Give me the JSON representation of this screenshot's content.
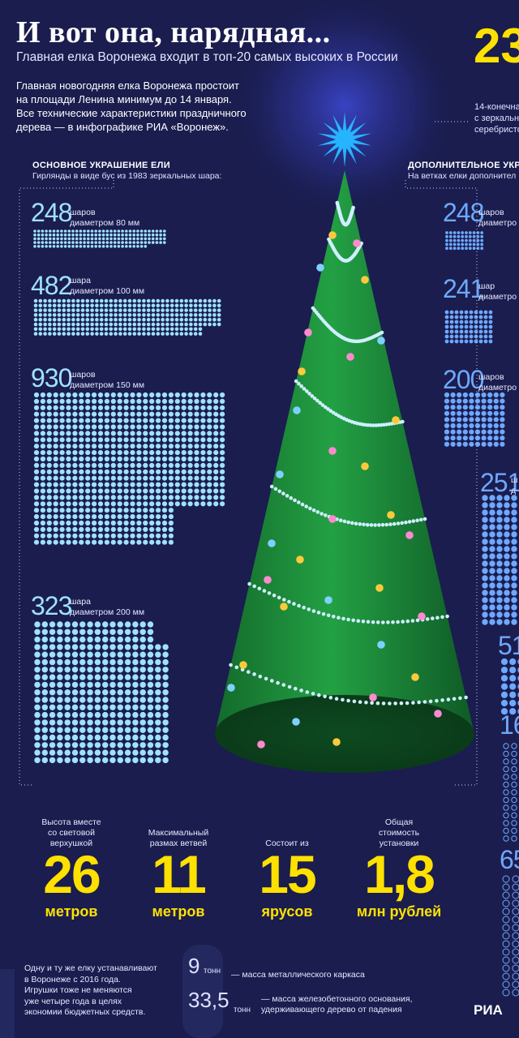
{
  "title": "И вот она, нарядная...",
  "subtitle": "Главная елка Воронежа входит в топ-20 самых высоких в России",
  "big_number": "23",
  "intro": [
    "Главная новогодняя елка Воронежа простоит",
    "на площади Ленина минимум до 14 января.",
    "Все технические характеристики праздничного",
    "дерева — в инфографике РИА «Воронеж»."
  ],
  "top_right": [
    "14-конечна",
    "с зеркальн",
    "серебристо"
  ],
  "left_section": {
    "heading": "ОСНОВНОЕ УКРАШЕНИЕ ЕЛИ",
    "sub": "Гирлянды в виде бус из 1983 зеркальных шара:",
    "items": [
      {
        "count": "248",
        "word": "шаров",
        "size": "диаметром 80 мм"
      },
      {
        "count": "482",
        "word": "шара",
        "size": "диаметром 100 мм"
      },
      {
        "count": "930",
        "word": "шаров",
        "size": "диаметром 150 мм"
      },
      {
        "count": "323",
        "word": "шара",
        "size": "диаметром 200 мм"
      }
    ]
  },
  "right_section": {
    "heading": "ДОПОЛНИТЕЛЬНОЕ УКРАШ",
    "sub": "На ветках елки дополнител",
    "items": [
      {
        "count": "248",
        "word": "шаров",
        "size": "диаметро"
      },
      {
        "count": "241",
        "word": "шар",
        "size": "диаметро"
      },
      {
        "count": "200",
        "word": "шаров",
        "size": "диаметро"
      },
      {
        "count": "251",
        "word": "ш",
        "size": "д"
      },
      {
        "count": "51",
        "word": "",
        "size": ""
      },
      {
        "count": "16",
        "word": "",
        "size": ""
      },
      {
        "count": "65",
        "word": "",
        "size": ""
      }
    ]
  },
  "stats": [
    {
      "caption": [
        "Высота вместе",
        "со световой",
        "верхушкой"
      ],
      "value": "26",
      "unit": "метров"
    },
    {
      "caption": [
        "Максимальный",
        "размах ветвей"
      ],
      "value": "11",
      "unit": "метров"
    },
    {
      "caption": [
        "Состоит из"
      ],
      "value": "15",
      "unit": "ярусов"
    },
    {
      "caption": [
        "Общая",
        "стоимость",
        "установки"
      ],
      "value": "1,8",
      "unit": "млн рублей"
    }
  ],
  "note": [
    "Одну и ту же елку устанавливают",
    "в Воронеже с 2016 года.",
    "Игрушки тоже не меняются",
    "уже четыре года в целях",
    "экономии бюджетных средств."
  ],
  "mass": [
    {
      "value": "9",
      "unit": "тонн",
      "desc": [
        "— масса металлического каркаса"
      ]
    },
    {
      "value": "33,5",
      "unit": "тонн",
      "desc": [
        "— масса железобетонного основания,",
        "удерживающего дерево от падения"
      ]
    }
  ],
  "logo": "РИА",
  "colors": {
    "background": "#1a1d4e",
    "accent_yellow": "#ffe100",
    "bead_light": "#9fe1ff",
    "bead_blue": "#6fa8ff",
    "tree_green": "#1d8a3a",
    "star": "#26b4ff"
  },
  "icons": [
    "star-icon",
    "snowflake-icon",
    "bauble-icon"
  ]
}
